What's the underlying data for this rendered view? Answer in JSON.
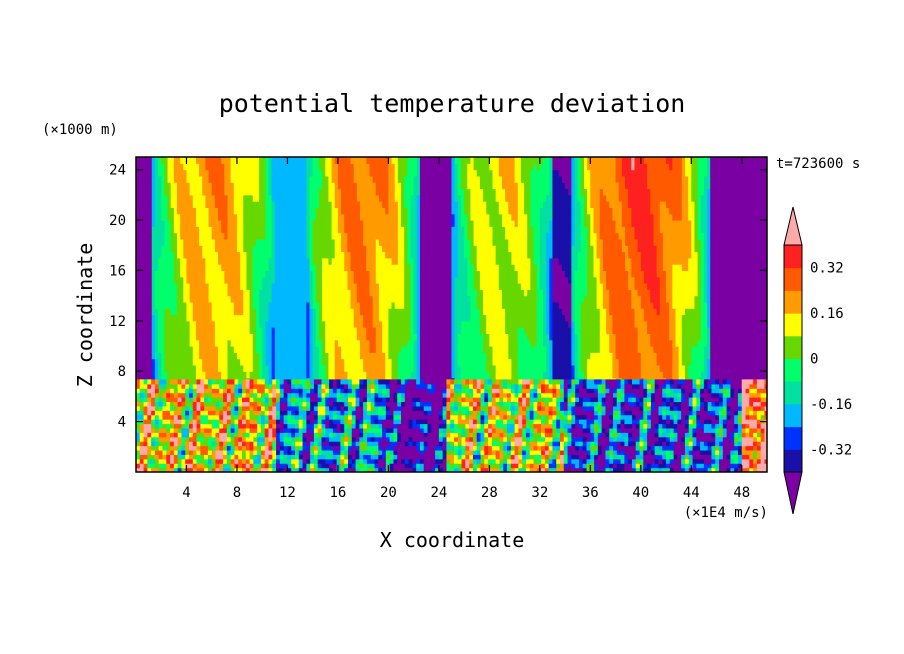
{
  "chart_data": {
    "type": "heatmap",
    "title": "potential temperature deviation",
    "xlabel": "X coordinate",
    "ylabel": "Z coordinate",
    "x_unit": "(×1E4 m/s)",
    "y_unit": "(×1000 m)",
    "time_label": "t=723600 s",
    "xlim": [
      0,
      50
    ],
    "ylim": [
      0,
      25
    ],
    "x_ticks": [
      4,
      8,
      12,
      16,
      20,
      24,
      28,
      32,
      36,
      40,
      44,
      48
    ],
    "x_tick_labels": [
      "4",
      "8",
      "12",
      "16",
      "20",
      "24",
      "28",
      "32",
      "36",
      "40",
      "44",
      "48"
    ],
    "y_ticks": [
      4,
      8,
      12,
      16,
      20,
      24
    ],
    "y_tick_labels": [
      "4",
      "8",
      "12",
      "16",
      "20",
      "24"
    ],
    "colorbar": {
      "levels": [
        -0.4,
        -0.32,
        -0.24,
        -0.16,
        -0.08,
        0,
        0.08,
        0.16,
        0.24,
        0.32,
        0.4
      ],
      "colors": [
        "#7b00a4",
        "#1a0fa8",
        "#0032ff",
        "#00b8ff",
        "#00e0a0",
        "#00ff6a",
        "#66d800",
        "#ffff00",
        "#ff9a00",
        "#ff5a00",
        "#ff2020",
        "#ffaaaa"
      ],
      "labels": [
        "-0.32",
        "-0.16",
        "0",
        "0.16",
        "0.32"
      ],
      "label_values": [
        -0.32,
        -0.16,
        0,
        0.16,
        0.32
      ]
    },
    "upper_columns": [
      {
        "x0": 0,
        "x1": 1.2,
        "value": -0.45
      },
      {
        "x0": 1.2,
        "x1": 11,
        "value": 0.18
      },
      {
        "x0": 11,
        "x1": 13.5,
        "value": -0.2
      },
      {
        "x0": 13.5,
        "x1": 22.5,
        "value": 0.22
      },
      {
        "x0": 22.5,
        "x1": 25,
        "value": -0.45
      },
      {
        "x0": 25,
        "x1": 33,
        "value": 0.1
      },
      {
        "x0": 33,
        "x1": 34.5,
        "value": -0.38
      },
      {
        "x0": 34.5,
        "x1": 45.5,
        "value": 0.3
      },
      {
        "x0": 45.5,
        "x1": 50,
        "value": -0.45
      }
    ],
    "boundary_layer_top": 7
  }
}
